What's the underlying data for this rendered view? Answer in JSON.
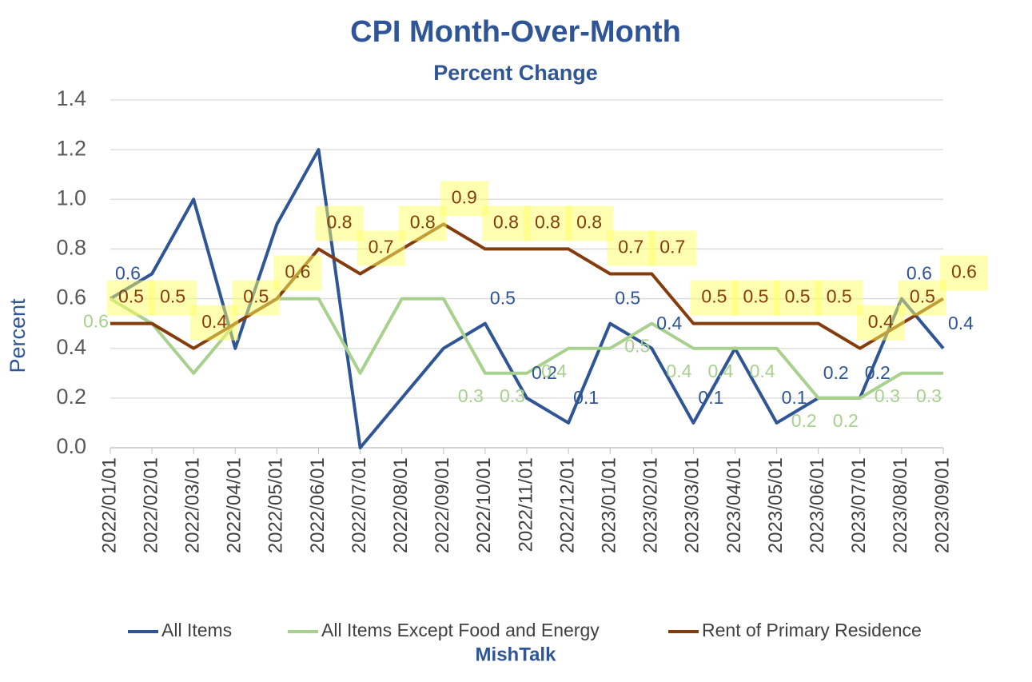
{
  "chart_data": {
    "type": "line",
    "title": "CPI Month-Over-Month",
    "subtitle": "Percent Change",
    "ylabel": "Percent",
    "source": "MishTalk",
    "categories": [
      "2022/01/01",
      "2022/02/01",
      "2022/03/01",
      "2022/04/01",
      "2022/05/01",
      "2022/06/01",
      "2022/07/01",
      "2022/08/01",
      "2022/09/01",
      "2022/10/01",
      "2022/11/01",
      "2022/12/01",
      "2023/01/01",
      "2023/02/01",
      "2023/03/01",
      "2023/04/01",
      "2023/05/01",
      "2023/06/01",
      "2023/07/01",
      "2023/08/01",
      "2023/09/01"
    ],
    "series": [
      {
        "name": "All Items",
        "color": "#2f5597",
        "values": [
          0.6,
          0.7,
          1.0,
          0.4,
          0.9,
          1.2,
          0.0,
          0.2,
          0.4,
          0.5,
          0.2,
          0.1,
          0.5,
          0.4,
          0.1,
          0.4,
          0.1,
          0.2,
          0.2,
          0.6,
          0.4
        ],
        "value_labels": [
          "0.6",
          null,
          null,
          null,
          null,
          null,
          null,
          null,
          null,
          "0.5",
          "0.2",
          "0.1",
          "0.5",
          "0.4",
          "0.1",
          null,
          "0.1",
          "0.2",
          "0.2",
          "0.6",
          "0.4"
        ]
      },
      {
        "name": "All Items Except Food and Energy",
        "color": "#a9d18e",
        "values": [
          0.6,
          0.5,
          0.3,
          0.5,
          0.6,
          0.6,
          0.3,
          0.6,
          0.6,
          0.3,
          0.3,
          0.4,
          0.4,
          0.5,
          0.4,
          0.4,
          0.4,
          0.2,
          0.2,
          0.3,
          0.3
        ],
        "value_labels": [
          "0.6",
          null,
          null,
          null,
          null,
          null,
          null,
          null,
          null,
          "0.3",
          "0.3",
          "0.4",
          null,
          "0.5",
          "0.4",
          "0.4",
          "0.4",
          "0.2",
          "0.2",
          "0.3",
          "0.3"
        ]
      },
      {
        "name": "Rent of Primary Residence",
        "color": "#843c0c",
        "values": [
          0.5,
          0.5,
          0.4,
          0.5,
          0.6,
          0.8,
          0.7,
          0.8,
          0.9,
          0.8,
          0.8,
          0.8,
          0.7,
          0.7,
          0.5,
          0.5,
          0.5,
          0.5,
          0.4,
          0.5,
          0.6
        ],
        "value_labels": [
          "0.5",
          "0.5",
          "0.4",
          "0.5",
          "0.6",
          "0.8",
          "0.7",
          "0.8",
          "0.9",
          "0.8",
          "0.8",
          "0.8",
          "0.7",
          "0.7",
          "0.5",
          "0.5",
          "0.5",
          "0.5",
          "0.4",
          "0.5",
          "0.6"
        ]
      }
    ],
    "ylim": [
      0,
      1.4
    ],
    "yticks": [
      {
        "value": 0,
        "label": "0.0"
      },
      0.2,
      0.4,
      0.6,
      0.8,
      {
        "value": 1,
        "label": "1.0"
      },
      1.2,
      1.4
    ],
    "grid": true,
    "legend": "bottom"
  }
}
